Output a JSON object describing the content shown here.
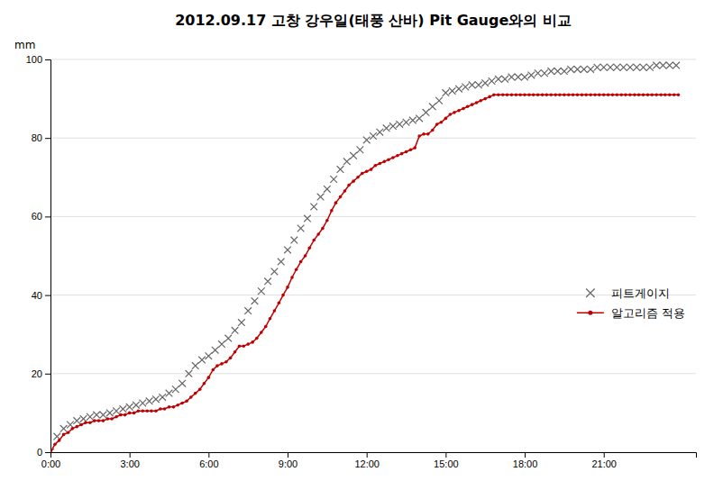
{
  "chart_data": {
    "type": "line",
    "title": "2012.09.17 고창 강우일(태풍 산바) Pit Gauge와의 비교",
    "ylabel": "mm",
    "xlim": [
      0,
      24.5
    ],
    "ylim": [
      0,
      100
    ],
    "yticks": [
      0,
      20,
      40,
      60,
      80,
      100
    ],
    "xticks": [
      {
        "value": 0,
        "label": "0:00"
      },
      {
        "value": 3,
        "label": "3:00"
      },
      {
        "value": 6,
        "label": "6:00"
      },
      {
        "value": 9,
        "label": "9:00"
      },
      {
        "value": 12,
        "label": "12:00"
      },
      {
        "value": 15,
        "label": "15:00"
      },
      {
        "value": 18,
        "label": "18:00"
      },
      {
        "value": 21,
        "label": "21:00"
      }
    ],
    "grid": "y",
    "legend": "right",
    "series": [
      {
        "name": "피트게이지",
        "type": "scatter",
        "marker": "x",
        "color": "#666666",
        "x": [
          0.0,
          0.25,
          0.5,
          0.75,
          1.0,
          1.25,
          1.5,
          1.75,
          2.0,
          2.25,
          2.5,
          2.75,
          3.0,
          3.25,
          3.5,
          3.75,
          4.0,
          4.25,
          4.5,
          4.75,
          5.0,
          5.25,
          5.5,
          5.75,
          6.0,
          6.25,
          6.5,
          6.75,
          7.0,
          7.25,
          7.5,
          7.75,
          8.0,
          8.25,
          8.5,
          8.75,
          9.0,
          9.25,
          9.5,
          9.75,
          10.0,
          10.25,
          10.5,
          10.75,
          11.0,
          11.25,
          11.5,
          11.75,
          12.0,
          12.25,
          12.5,
          12.75,
          13.0,
          13.25,
          13.5,
          13.75,
          14.0,
          14.25,
          14.5,
          14.75,
          15.0,
          15.25,
          15.5,
          15.75,
          16.0,
          16.25,
          16.5,
          16.75,
          17.0,
          17.25,
          17.5,
          17.75,
          18.0,
          18.25,
          18.5,
          18.75,
          19.0,
          19.25,
          19.5,
          19.75,
          20.0,
          20.25,
          20.5,
          20.75,
          21.0,
          21.25,
          21.5,
          21.75,
          22.0,
          22.25,
          22.5,
          22.75,
          23.0,
          23.25,
          23.5,
          23.75
        ],
        "values": [
          0.0,
          4.0,
          6.0,
          7.0,
          8.0,
          8.5,
          9.0,
          9.5,
          9.5,
          10.0,
          10.5,
          11.0,
          11.5,
          12.0,
          12.5,
          13.0,
          13.5,
          14.0,
          15.0,
          16.0,
          17.5,
          20.0,
          22.0,
          23.5,
          24.5,
          26.0,
          27.5,
          29.0,
          31.0,
          33.0,
          36.0,
          38.5,
          41.0,
          43.5,
          46.0,
          48.5,
          51.5,
          54.0,
          57.0,
          59.5,
          62.5,
          65.0,
          67.0,
          69.5,
          72.0,
          74.0,
          75.5,
          77.0,
          79.5,
          80.5,
          81.5,
          82.5,
          83.0,
          83.5,
          84.0,
          84.5,
          85.0,
          86.5,
          88.0,
          89.5,
          91.5,
          92.0,
          92.5,
          93.0,
          93.5,
          93.5,
          94.0,
          94.5,
          95.0,
          95.0,
          95.5,
          95.5,
          95.5,
          96.0,
          96.5,
          96.5,
          97.0,
          97.0,
          97.0,
          97.5,
          97.5,
          97.5,
          97.5,
          98.0,
          98.0,
          98.0,
          98.0,
          98.0,
          98.0,
          98.0,
          98.0,
          98.0,
          98.5,
          98.5,
          98.5,
          98.5
        ]
      },
      {
        "name": "알고리즘 적용",
        "type": "line",
        "marker": "o",
        "color": "#c00000",
        "x": [
          0.0,
          0.17,
          0.33,
          0.5,
          0.67,
          0.83,
          1.0,
          1.17,
          1.33,
          1.5,
          1.67,
          1.83,
          2.0,
          2.17,
          2.33,
          2.5,
          2.67,
          2.83,
          3.0,
          3.17,
          3.33,
          3.5,
          3.67,
          3.83,
          4.0,
          4.17,
          4.33,
          4.5,
          4.67,
          4.83,
          5.0,
          5.17,
          5.33,
          5.5,
          5.67,
          5.83,
          6.0,
          6.17,
          6.33,
          6.5,
          6.67,
          6.83,
          7.0,
          7.17,
          7.33,
          7.5,
          7.67,
          7.83,
          8.0,
          8.17,
          8.33,
          8.5,
          8.67,
          8.83,
          9.0,
          9.17,
          9.33,
          9.5,
          9.67,
          9.83,
          10.0,
          10.17,
          10.33,
          10.5,
          10.67,
          10.83,
          11.0,
          11.17,
          11.33,
          11.5,
          11.67,
          11.83,
          12.0,
          12.17,
          12.33,
          12.5,
          12.67,
          12.83,
          13.0,
          13.17,
          13.33,
          13.5,
          13.67,
          13.83,
          14.0,
          14.17,
          14.33,
          14.5,
          14.67,
          14.83,
          15.0,
          15.17,
          15.33,
          15.5,
          15.67,
          15.83,
          16.0,
          16.17,
          16.33,
          16.5,
          16.67,
          16.83,
          17.0,
          17.17,
          17.33,
          17.5,
          17.67,
          17.83,
          18.0,
          18.17,
          18.33,
          18.5,
          18.67,
          18.83,
          19.0,
          19.17,
          19.33,
          19.5,
          19.67,
          19.83,
          20.0,
          20.17,
          20.33,
          20.5,
          20.67,
          20.83,
          21.0,
          21.17,
          21.33,
          21.5,
          21.67,
          21.83,
          22.0,
          22.17,
          22.33,
          22.5,
          22.67,
          22.83,
          23.0,
          23.17,
          23.33,
          23.5,
          23.67,
          23.83
        ],
        "values": [
          0.0,
          2.0,
          3.0,
          4.5,
          5.0,
          6.0,
          6.5,
          7.0,
          7.5,
          7.5,
          8.0,
          8.0,
          8.0,
          8.5,
          8.5,
          9.0,
          9.5,
          9.5,
          10.0,
          10.0,
          10.5,
          10.5,
          10.5,
          10.5,
          10.5,
          11.0,
          11.0,
          11.5,
          11.5,
          12.0,
          12.5,
          13.0,
          14.0,
          15.0,
          16.0,
          17.5,
          19.0,
          21.0,
          22.0,
          22.5,
          23.0,
          24.0,
          25.5,
          27.0,
          27.0,
          27.5,
          28.0,
          29.0,
          30.5,
          32.0,
          34.0,
          36.0,
          38.0,
          40.0,
          42.0,
          44.5,
          46.5,
          48.5,
          50.0,
          52.0,
          54.0,
          55.5,
          57.0,
          59.0,
          61.5,
          63.5,
          65.0,
          66.5,
          68.0,
          69.0,
          70.0,
          71.0,
          71.5,
          72.0,
          73.0,
          73.5,
          74.0,
          74.5,
          75.0,
          75.5,
          76.0,
          76.5,
          77.0,
          77.5,
          80.5,
          81.0,
          81.0,
          82.0,
          83.5,
          84.0,
          85.0,
          86.0,
          86.5,
          87.0,
          87.5,
          88.0,
          88.5,
          89.0,
          89.5,
          90.0,
          90.5,
          91.0,
          91.0,
          91.0,
          91.0,
          91.0,
          91.0,
          91.0,
          91.0,
          91.0,
          91.0,
          91.0,
          91.0,
          91.0,
          91.0,
          91.0,
          91.0,
          91.0,
          91.0,
          91.0,
          91.0,
          91.0,
          91.0,
          91.0,
          91.0,
          91.0,
          91.0,
          91.0,
          91.0,
          91.0,
          91.0,
          91.0,
          91.0,
          91.0,
          91.0,
          91.0,
          91.0,
          91.0,
          91.0,
          91.0,
          91.0,
          91.0,
          91.0,
          91.0
        ]
      }
    ]
  }
}
